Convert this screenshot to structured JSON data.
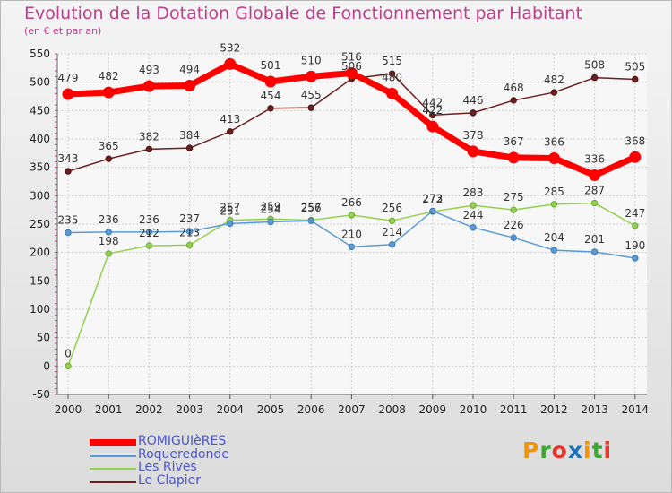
{
  "chart_data": {
    "type": "line",
    "title": "Evolution de la Dotation Globale de Fonctionnement par Habitant",
    "subtitle": "(en € et par an)",
    "xlabel": "",
    "ylabel": "",
    "categories": [
      "2000",
      "2001",
      "2002",
      "2003",
      "2004",
      "2005",
      "2006",
      "2007",
      "2008",
      "2009",
      "2010",
      "2011",
      "2012",
      "2013",
      "2014"
    ],
    "ylim": [
      -50,
      550
    ],
    "yticks": [
      "-50",
      "0",
      "50",
      "100",
      "150",
      "200",
      "250",
      "300",
      "350",
      "400",
      "450",
      "500",
      "550"
    ],
    "grid": true,
    "series": [
      {
        "name": "ROMIGUIèRES",
        "color": "#ff0000",
        "values": [
          479,
          482,
          493,
          494,
          532,
          501,
          510,
          516,
          480,
          422,
          378,
          367,
          366,
          336,
          368
        ],
        "labels": [
          "479",
          "482",
          "493",
          "494",
          "532",
          "501",
          "510",
          "516",
          "480",
          "422",
          "378",
          "367",
          "366",
          "336",
          "368"
        ]
      },
      {
        "name": "Roqueredonde",
        "color": "#5b9bd5",
        "values": [
          235,
          236,
          236,
          237,
          251,
          254,
          256,
          210,
          214,
          273,
          244,
          226,
          204,
          201,
          190
        ],
        "labels": [
          "235",
          "236",
          "236",
          "237",
          "251",
          "254",
          "256",
          "210",
          "214",
          "273",
          "244",
          "226",
          "204",
          "201",
          "190"
        ]
      },
      {
        "name": "Les Rives",
        "color": "#92d050",
        "values": [
          0,
          198,
          212,
          213,
          257,
          259,
          257,
          266,
          256,
          272,
          283,
          275,
          285,
          287,
          247
        ],
        "labels": [
          "0",
          "198",
          "212",
          "213",
          "257",
          "259",
          "257",
          "266",
          "256",
          "272",
          "283",
          "275",
          "285",
          "287",
          "247"
        ]
      },
      {
        "name": "Le Clapier",
        "color": "#6b1f1f",
        "values": [
          343,
          365,
          382,
          384,
          413,
          454,
          455,
          506,
          515,
          442,
          446,
          468,
          482,
          508,
          505
        ],
        "labels": [
          "343",
          "365",
          "382",
          "384",
          "413",
          "454",
          "455",
          "506",
          "515",
          "442",
          "446",
          "468",
          "482",
          "508",
          "505"
        ]
      }
    ]
  },
  "brand": {
    "name": "Proxiti",
    "letters": [
      "P",
      "r",
      "o",
      "x",
      "i",
      "t",
      "i"
    ],
    "colors": [
      "#f29400",
      "#3fa535",
      "#e6332a",
      "#1d71b8",
      "#f29400",
      "#3fa535",
      "#e6332a"
    ]
  }
}
